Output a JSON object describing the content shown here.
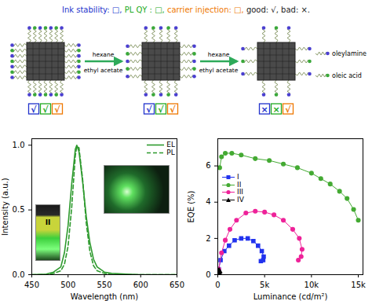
{
  "diagram": {
    "legend": [
      {
        "text": "Ink stability: □, ",
        "color": "#2233cc"
      },
      {
        "text": "PL QY : □, ",
        "color": "#22aa22"
      },
      {
        "text": "carrier injection: □, ",
        "color": "#ee7700"
      },
      {
        "text": "good: √, bad: ×.",
        "color": "#222222"
      }
    ],
    "stages": [
      {
        "checks": [
          "√",
          "√",
          "√"
        ]
      },
      {
        "checks": [
          "√",
          "√",
          "√"
        ]
      },
      {
        "checks": [
          "×",
          "×",
          "√"
        ]
      }
    ],
    "steps": [
      {
        "above": "hexane",
        "below": "ethyl acetate"
      },
      {
        "above": "hexane",
        "below": "ethyl acetate"
      }
    ],
    "ligands": [
      {
        "name": "oleylamine",
        "color": "#4a3fd0"
      },
      {
        "name": "oleic acid",
        "color": "#3aa83a"
      }
    ]
  },
  "chart_data": [
    {
      "type": "line",
      "x_label": "Wavelength (nm)",
      "y_label": "Intensity (a.u.)",
      "xlim": [
        450,
        650
      ],
      "xticks": [
        450,
        500,
        550,
        600,
        650
      ],
      "ylim": [
        0,
        1.05
      ],
      "yticks": [
        {
          "value": 0,
          "label": "0.0"
        },
        {
          "value": 0.5,
          "label": "0.5"
        },
        {
          "value": 1,
          "label": "1.0"
        }
      ],
      "legend": "top-right",
      "annotations": [
        "II"
      ],
      "x": [
        450,
        470,
        480,
        490,
        495,
        500,
        505,
        510,
        512,
        515,
        520,
        525,
        530,
        535,
        540,
        550,
        560,
        580,
        600,
        650
      ],
      "series": [
        {
          "name": "EL",
          "color": "#2e9a2e",
          "line_style": "solid",
          "values": [
            0,
            0.005,
            0.02,
            0.06,
            0.17,
            0.38,
            0.7,
            0.97,
            1.0,
            0.95,
            0.72,
            0.45,
            0.25,
            0.12,
            0.06,
            0.02,
            0.01,
            0.005,
            0,
            0
          ]
        },
        {
          "name": "PL",
          "color": "#2e9a2e",
          "line_style": "dashed",
          "values": [
            0,
            0,
            0.01,
            0.03,
            0.08,
            0.22,
            0.52,
            0.92,
            0.99,
            0.98,
            0.74,
            0.4,
            0.18,
            0.07,
            0.03,
            0.01,
            0,
            0,
            0,
            0
          ]
        }
      ]
    },
    {
      "type": "line",
      "x_label": "Luminance (cd/m²)",
      "y_label": "EQE (%)",
      "xlim": [
        0,
        15500
      ],
      "xticks": [
        0,
        {
          "value": 5000,
          "label": "5k"
        },
        {
          "value": 10000,
          "label": "10k"
        },
        {
          "value": 15000,
          "label": "15k"
        }
      ],
      "ylim": [
        0,
        7.5
      ],
      "yticks": [
        0,
        2,
        4,
        6
      ],
      "legend": "top-left",
      "series": [
        {
          "name": "I",
          "color": "#2233ee",
          "marker": "square",
          "x": [
            100,
            300,
            700,
            1200,
            1800,
            2500,
            3200,
            3800,
            4300,
            4700,
            4900,
            4850,
            4600
          ],
          "values": [
            0.3,
            0.8,
            1.3,
            1.6,
            1.9,
            2.0,
            2.0,
            1.85,
            1.6,
            1.3,
            1.0,
            0.8,
            0.75
          ]
        },
        {
          "name": "II",
          "color": "#44aa33",
          "marker": "circle",
          "x": [
            200,
            400,
            800,
            1500,
            2500,
            4000,
            5500,
            7000,
            8500,
            10000,
            11000,
            12000,
            13000,
            13800,
            14500,
            15000
          ],
          "values": [
            5.9,
            6.5,
            6.7,
            6.7,
            6.6,
            6.4,
            6.3,
            6.1,
            5.9,
            5.6,
            5.3,
            5.0,
            4.6,
            4.2,
            3.6,
            3.0
          ]
        },
        {
          "name": "III",
          "color": "#ee2299",
          "marker": "circle",
          "x": [
            100,
            400,
            800,
            1300,
            2000,
            3000,
            4000,
            5000,
            6000,
            7000,
            8000,
            8700,
            9000,
            8900,
            8600
          ],
          "values": [
            0.3,
            1.2,
            1.9,
            2.5,
            3.0,
            3.4,
            3.5,
            3.45,
            3.3,
            3.0,
            2.5,
            2.0,
            1.4,
            1.0,
            0.8
          ]
        },
        {
          "name": "IV",
          "color": "#000000",
          "marker": "triangle",
          "x": [
            10,
            30,
            60,
            100,
            150
          ],
          "values": [
            0.02,
            0.05,
            0.1,
            0.15,
            0.2
          ]
        }
      ]
    }
  ]
}
